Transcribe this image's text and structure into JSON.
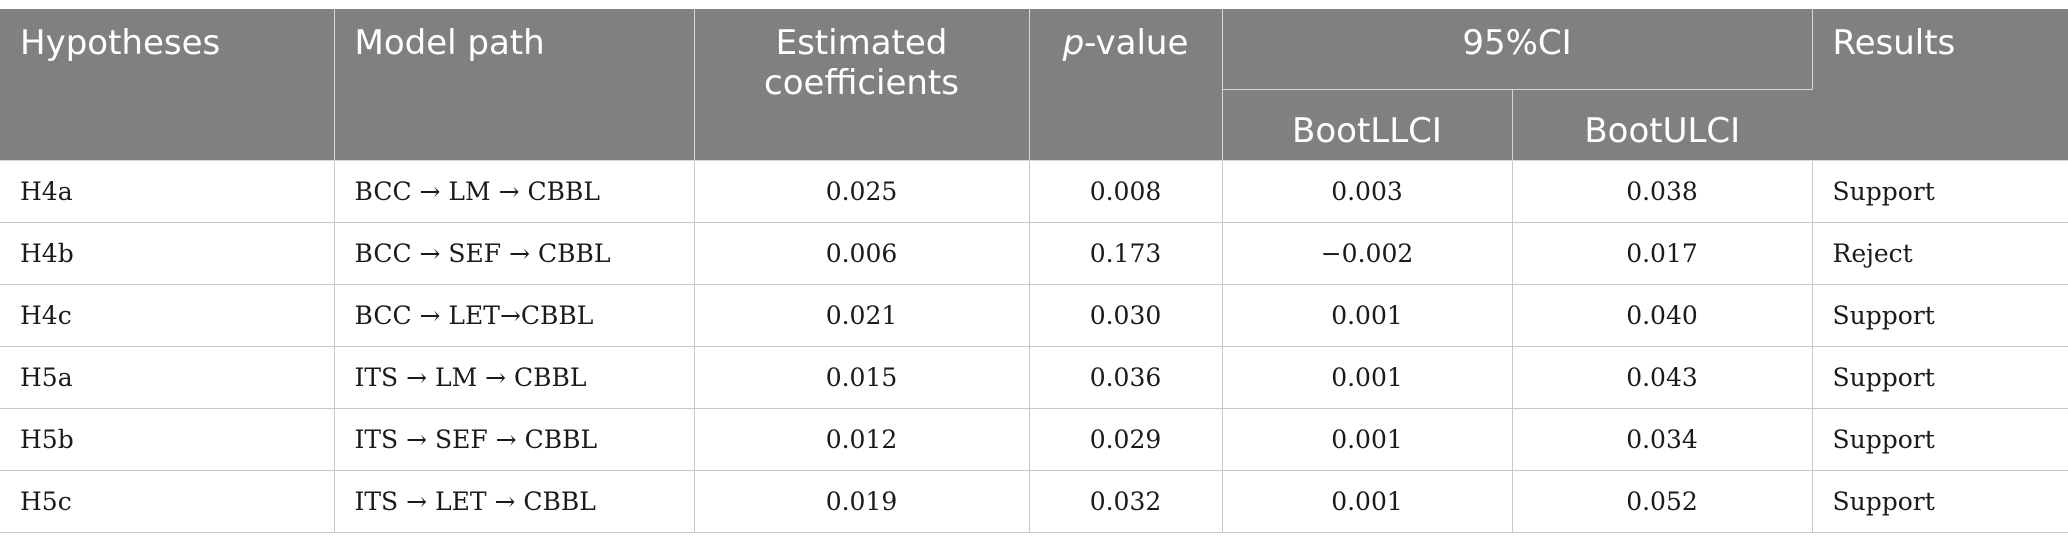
{
  "table": {
    "headers": {
      "hypotheses": "Hypotheses",
      "model_path": "Model path",
      "estimated_coefficients": "Estimated coefficients",
      "p_value_italic": "p",
      "p_value_rest": "-value",
      "ci_group": "95%CI",
      "boot_llci": "BootLLCI",
      "boot_ulci": "BootULCI",
      "results": "Results"
    },
    "rows": [
      {
        "hypothesis": "H4a",
        "path": "BCC → LM → CBBL",
        "coef": "0.025",
        "p": "0.008",
        "llci": "0.003",
        "ulci": "0.038",
        "result": "Support"
      },
      {
        "hypothesis": "H4b",
        "path": "BCC → SEF → CBBL",
        "coef": "0.006",
        "p": "0.173",
        "llci": "−0.002",
        "ulci": "0.017",
        "result": "Reject"
      },
      {
        "hypothesis": "H4c",
        "path": "BCC → LET→CBBL",
        "coef": "0.021",
        "p": "0.030",
        "llci": "0.001",
        "ulci": "0.040",
        "result": "Support"
      },
      {
        "hypothesis": "H5a",
        "path": "ITS → LM → CBBL",
        "coef": "0.015",
        "p": "0.036",
        "llci": "0.001",
        "ulci": "0.043",
        "result": "Support"
      },
      {
        "hypothesis": "H5b",
        "path": "ITS → SEF → CBBL",
        "coef": "0.012",
        "p": "0.029",
        "llci": "0.001",
        "ulci": "0.034",
        "result": "Support"
      },
      {
        "hypothesis": "H5c",
        "path": "ITS → LET → CBBL",
        "coef": "0.019",
        "p": "0.032",
        "llci": "0.001",
        "ulci": "0.052",
        "result": "Support"
      }
    ]
  }
}
